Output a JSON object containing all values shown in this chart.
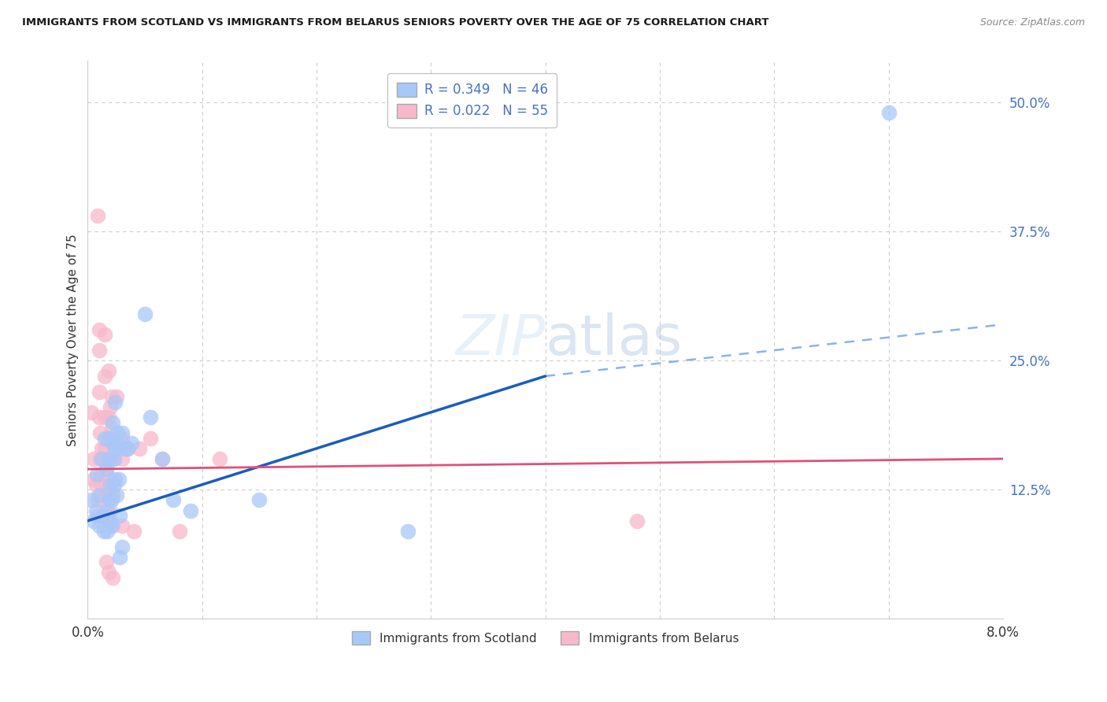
{
  "title": "IMMIGRANTS FROM SCOTLAND VS IMMIGRANTS FROM BELARUS SENIORS POVERTY OVER THE AGE OF 75 CORRELATION CHART",
  "source": "Source: ZipAtlas.com",
  "ylabel": "Seniors Poverty Over the Age of 75",
  "xlim": [
    0.0,
    0.08
  ],
  "ylim": [
    0.0,
    0.54
  ],
  "yticks": [
    0.125,
    0.25,
    0.375,
    0.5
  ],
  "ytick_labels": [
    "12.5%",
    "25.0%",
    "37.5%",
    "50.0%"
  ],
  "grid_color": "#cccccc",
  "scotland_color": "#a8c8f8",
  "belarus_color": "#f8b8cc",
  "scotland_line_color": "#1a5cbf",
  "belarus_line_color": "#e0507a",
  "dash_color": "#8ab4e8",
  "scotland_R": 0.349,
  "scotland_N": 46,
  "belarus_R": 0.022,
  "belarus_N": 55,
  "scotland_line": [
    0.0,
    0.095,
    0.04,
    0.235
  ],
  "belarus_line": [
    0.0,
    0.145,
    0.08,
    0.155
  ],
  "dash_line": [
    0.04,
    0.235,
    0.08,
    0.285
  ],
  "scotland_points": [
    [
      0.0003,
      0.115
    ],
    [
      0.0005,
      0.095
    ],
    [
      0.0007,
      0.105
    ],
    [
      0.0008,
      0.14
    ],
    [
      0.001,
      0.09
    ],
    [
      0.001,
      0.12
    ],
    [
      0.0012,
      0.155
    ],
    [
      0.0013,
      0.1
    ],
    [
      0.0014,
      0.085
    ],
    [
      0.0015,
      0.175
    ],
    [
      0.0016,
      0.145
    ],
    [
      0.0017,
      0.105
    ],
    [
      0.0017,
      0.085
    ],
    [
      0.0018,
      0.175
    ],
    [
      0.0018,
      0.155
    ],
    [
      0.0019,
      0.115
    ],
    [
      0.002,
      0.095
    ],
    [
      0.002,
      0.13
    ],
    [
      0.0021,
      0.09
    ],
    [
      0.0021,
      0.115
    ],
    [
      0.0022,
      0.19
    ],
    [
      0.0022,
      0.17
    ],
    [
      0.0023,
      0.155
    ],
    [
      0.0023,
      0.13
    ],
    [
      0.0024,
      0.21
    ],
    [
      0.0024,
      0.165
    ],
    [
      0.0024,
      0.135
    ],
    [
      0.0025,
      0.17
    ],
    [
      0.0025,
      0.12
    ],
    [
      0.0026,
      0.18
    ],
    [
      0.0027,
      0.135
    ],
    [
      0.0028,
      0.1
    ],
    [
      0.0028,
      0.06
    ],
    [
      0.003,
      0.18
    ],
    [
      0.003,
      0.07
    ],
    [
      0.0032,
      0.165
    ],
    [
      0.0035,
      0.165
    ],
    [
      0.0038,
      0.17
    ],
    [
      0.005,
      0.295
    ],
    [
      0.0055,
      0.195
    ],
    [
      0.0065,
      0.155
    ],
    [
      0.0075,
      0.115
    ],
    [
      0.009,
      0.105
    ],
    [
      0.015,
      0.115
    ],
    [
      0.028,
      0.085
    ],
    [
      0.07,
      0.49
    ]
  ],
  "belarus_points": [
    [
      0.0003,
      0.2
    ],
    [
      0.0005,
      0.155
    ],
    [
      0.0005,
      0.135
    ],
    [
      0.0007,
      0.13
    ],
    [
      0.0008,
      0.115
    ],
    [
      0.0008,
      0.1
    ],
    [
      0.0009,
      0.39
    ],
    [
      0.001,
      0.28
    ],
    [
      0.001,
      0.26
    ],
    [
      0.001,
      0.22
    ],
    [
      0.001,
      0.195
    ],
    [
      0.0011,
      0.18
    ],
    [
      0.0011,
      0.155
    ],
    [
      0.0012,
      0.165
    ],
    [
      0.0012,
      0.14
    ],
    [
      0.0012,
      0.13
    ],
    [
      0.0013,
      0.115
    ],
    [
      0.0013,
      0.1
    ],
    [
      0.0015,
      0.275
    ],
    [
      0.0015,
      0.235
    ],
    [
      0.0015,
      0.195
    ],
    [
      0.0015,
      0.165
    ],
    [
      0.0016,
      0.145
    ],
    [
      0.0016,
      0.125
    ],
    [
      0.0016,
      0.1
    ],
    [
      0.0016,
      0.055
    ],
    [
      0.0018,
      0.24
    ],
    [
      0.0018,
      0.195
    ],
    [
      0.0018,
      0.155
    ],
    [
      0.0018,
      0.125
    ],
    [
      0.0018,
      0.095
    ],
    [
      0.0018,
      0.045
    ],
    [
      0.002,
      0.205
    ],
    [
      0.002,
      0.175
    ],
    [
      0.002,
      0.135
    ],
    [
      0.002,
      0.105
    ],
    [
      0.0021,
      0.215
    ],
    [
      0.0021,
      0.185
    ],
    [
      0.0022,
      0.155
    ],
    [
      0.0022,
      0.12
    ],
    [
      0.0022,
      0.09
    ],
    [
      0.0022,
      0.04
    ],
    [
      0.0025,
      0.215
    ],
    [
      0.0025,
      0.165
    ],
    [
      0.003,
      0.175
    ],
    [
      0.003,
      0.155
    ],
    [
      0.003,
      0.09
    ],
    [
      0.0035,
      0.165
    ],
    [
      0.004,
      0.085
    ],
    [
      0.0045,
      0.165
    ],
    [
      0.0055,
      0.175
    ],
    [
      0.0065,
      0.155
    ],
    [
      0.008,
      0.085
    ],
    [
      0.0115,
      0.155
    ],
    [
      0.048,
      0.095
    ]
  ]
}
